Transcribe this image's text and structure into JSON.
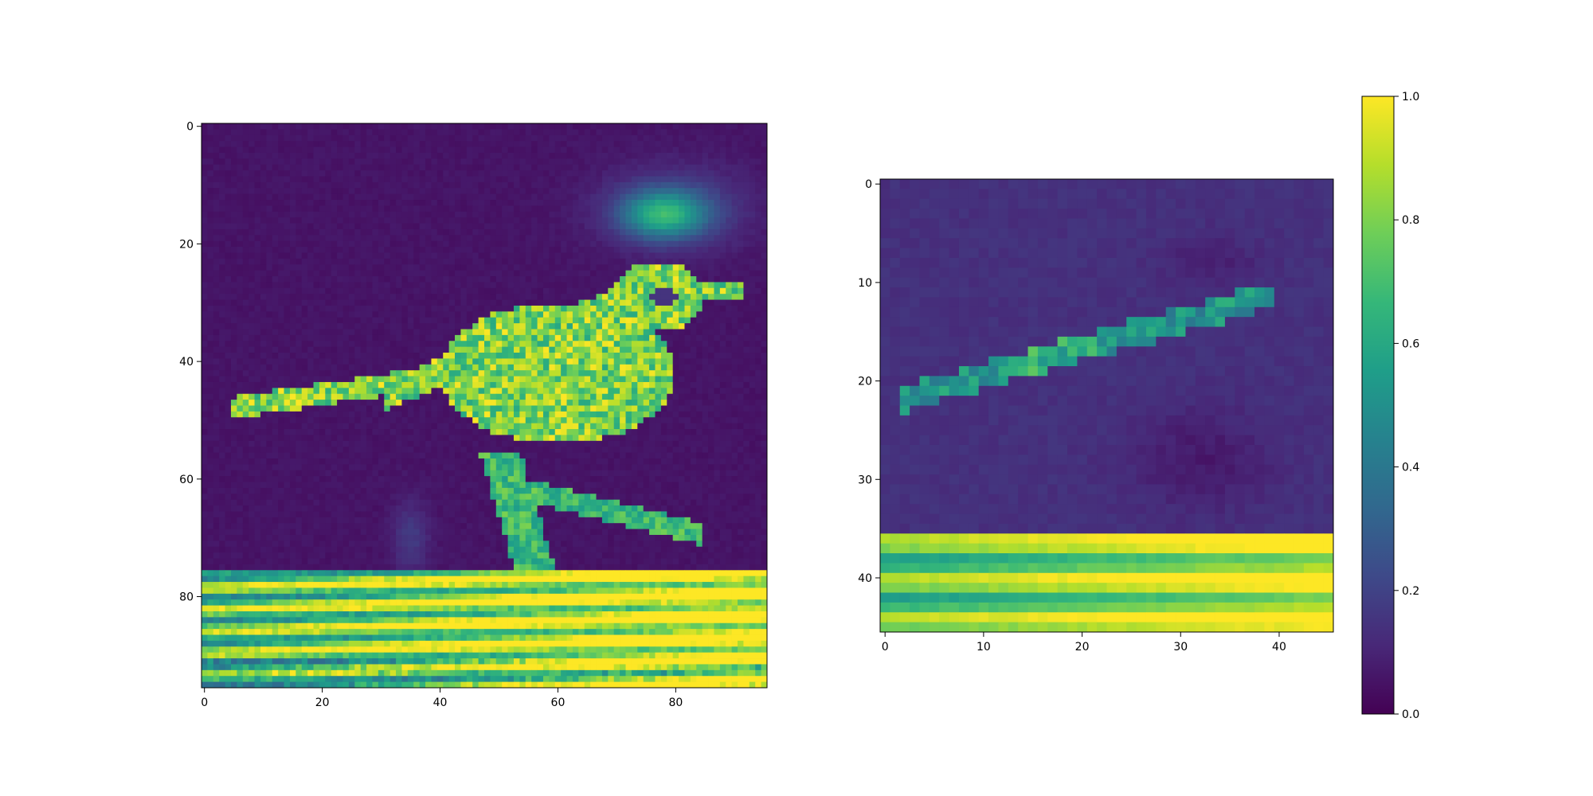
{
  "colormap": "viridis",
  "colors": {
    "viridis_stops": [
      "#440154",
      "#482878",
      "#3e4989",
      "#31688e",
      "#26828e",
      "#1f9e89",
      "#35b779",
      "#6ece58",
      "#b5de2b",
      "#fde725"
    ]
  },
  "chart_data": [
    {
      "type": "heatmap",
      "title": "",
      "xlabel": "",
      "ylabel": "",
      "image_size": [
        96,
        96
      ],
      "xticks": [
        0,
        20,
        40,
        60,
        80
      ],
      "yticks": [
        0,
        20,
        40,
        60,
        80
      ],
      "xlim": [
        -0.5,
        95.5
      ],
      "ylim": [
        95.5,
        -0.5
      ],
      "content": "grayscale-intensity map of a bird perched on a branch; bright horizontal band along the bottom (rows ~76-96)",
      "notable_regions": [
        {
          "label": "bird body",
          "x_range": [
            5,
            92
          ],
          "y_range": [
            24,
            60
          ],
          "value_range": [
            0.6,
            1.0
          ]
        },
        {
          "label": "glow above bird",
          "x_range": [
            60,
            90
          ],
          "y_range": [
            8,
            22
          ],
          "value_range": [
            0.6,
            0.8
          ]
        },
        {
          "label": "bright branch band",
          "x_range": [
            0,
            96
          ],
          "y_range": [
            76,
            96
          ],
          "value_range": [
            0.6,
            1.0
          ]
        },
        {
          "label": "background",
          "x_range": [
            0,
            96
          ],
          "y_range": [
            0,
            76
          ],
          "value_range": [
            0.0,
            0.15
          ]
        }
      ]
    },
    {
      "type": "heatmap",
      "title": "",
      "xlabel": "",
      "ylabel": "",
      "image_size": [
        46,
        46
      ],
      "xticks": [
        0,
        10,
        20,
        30,
        40
      ],
      "yticks": [
        0,
        10,
        20,
        30,
        40
      ],
      "xlim": [
        -0.5,
        45.5
      ],
      "ylim": [
        45.5,
        -0.5
      ],
      "content": "lower-resolution feature map; faint bird silhouette in dark purple, bright horizontal band along the bottom (rows ~36-46)",
      "notable_regions": [
        {
          "label": "bird back edge",
          "x_range": [
            2,
            38
          ],
          "y_range": [
            11,
            23
          ],
          "value_range": [
            0.3,
            0.7
          ]
        },
        {
          "label": "bright branch band",
          "x_range": [
            0,
            46
          ],
          "y_range": [
            36,
            46
          ],
          "value_range": [
            0.6,
            1.0
          ]
        },
        {
          "label": "background",
          "x_range": [
            0,
            46
          ],
          "y_range": [
            0,
            36
          ],
          "value_range": [
            0.05,
            0.2
          ]
        }
      ]
    }
  ],
  "colorbar": {
    "range": [
      0.0,
      1.0
    ],
    "ticks": [
      "0.0",
      "0.2",
      "0.4",
      "0.6",
      "0.8",
      "1.0"
    ]
  }
}
